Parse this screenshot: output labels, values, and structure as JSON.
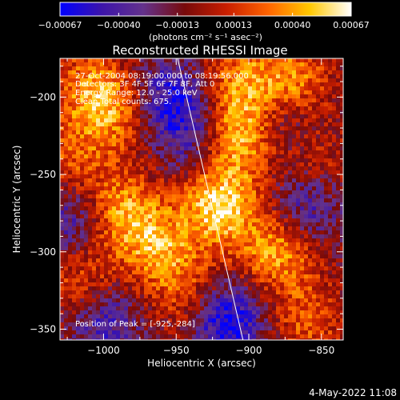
{
  "chart_data": {
    "type": "heatmap",
    "title": "Reconstructed RHESSI Image",
    "xlabel": "Heliocentric X (arcsec)",
    "ylabel": "Heliocentric Y (arcsec)",
    "xlim": [
      -1030,
      -835
    ],
    "ylim": [
      -357,
      -175
    ],
    "x_ticks": [
      -1000,
      -950,
      -900,
      -850
    ],
    "x_tick_labels": [
      "−1000",
      "−950",
      "−900",
      "−850"
    ],
    "y_ticks": [
      -200,
      -250,
      -300,
      -350
    ],
    "y_tick_labels": [
      "−200",
      "−250",
      "−300",
      "−350"
    ],
    "colorbar": {
      "min": -0.00067,
      "max": 0.00067,
      "ticks": [
        -0.00067,
        -0.0004,
        -0.00013,
        0.00013,
        0.0004,
        0.00067
      ],
      "tick_labels": [
        "−0.00067",
        "−0.00040",
        "−0.00013",
        "0.00013",
        "0.00040",
        "0.00067"
      ],
      "units_label": "(photons cm⁻² s⁻¹ asec⁻²)",
      "colors": [
        "#0000ff",
        "#3c14aa",
        "#64328c",
        "#780a0a",
        "#c81e00",
        "#ff6400",
        "#ffc800",
        "#ffffff"
      ]
    },
    "annotations": [
      "27-Oct-2004 08:19:00.000 to 08:19:56.000",
      "Detectors: 3F 4F 5F 6F 7F 8F, Att 0",
      "Energy Range: 12.0 - 25.0 keV",
      "Clean     Total counts: 675."
    ],
    "peak_label": "Position of Peak = [-925,-284]",
    "peak": [
      -925,
      -284
    ],
    "limb_line": [
      [
        -949,
        -175
      ],
      [
        -904,
        -357
      ]
    ],
    "hot_regions": [
      {
        "x": -920,
        "y": -270,
        "value": 0.00067
      },
      {
        "x": -905,
        "y": -225,
        "value": 0.0006
      },
      {
        "x": -985,
        "y": -275,
        "value": 0.0005
      },
      {
        "x": -960,
        "y": -300,
        "value": 0.00045
      },
      {
        "x": -880,
        "y": -300,
        "value": 0.0005
      },
      {
        "x": -1010,
        "y": -195,
        "value": 0.0004
      },
      {
        "x": -990,
        "y": -210,
        "value": 0.00035
      },
      {
        "x": -870,
        "y": -190,
        "value": 0.00045
      },
      {
        "x": -860,
        "y": -345,
        "value": 0.0003
      },
      {
        "x": -1020,
        "y": -240,
        "value": 0.0003
      },
      {
        "x": -940,
        "y": -330,
        "value": 0.00025
      },
      {
        "x": -1015,
        "y": -320,
        "value": 0.00032
      },
      {
        "x": -905,
        "y": -190,
        "value": 0.0004
      },
      {
        "x": -855,
        "y": -245,
        "value": 0.00022
      }
    ],
    "cold_regions": [
      {
        "x": -955,
        "y": -200,
        "value": -0.00045
      },
      {
        "x": -915,
        "y": -345,
        "value": -0.0006
      },
      {
        "x": -860,
        "y": -270,
        "value": -0.0004
      },
      {
        "x": -1000,
        "y": -345,
        "value": -0.0004
      },
      {
        "x": -940,
        "y": -225,
        "value": -0.0003
      },
      {
        "x": -1025,
        "y": -280,
        "value": -0.00035
      },
      {
        "x": -880,
        "y": -215,
        "value": -0.0003
      }
    ]
  },
  "footer": {
    "date": "4-May-2022 11:08"
  }
}
